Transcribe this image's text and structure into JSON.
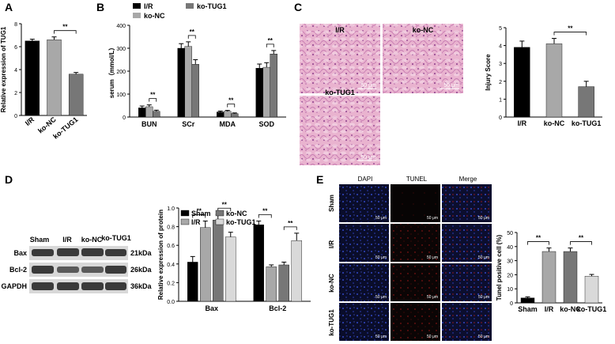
{
  "panels": {
    "A": "A",
    "B": "B",
    "C": "C",
    "D": "D",
    "E": "E"
  },
  "sig": "**",
  "colors": {
    "black": "#000000",
    "darkgray": "#8c8c8c",
    "gray": "#a8a8a8",
    "midgray": "#777777",
    "lightgray": "#d9d9d9",
    "he_pink": "#e7aac9",
    "he_purple": "#b06ca9",
    "dapi_blue": "#2a3aa8",
    "tunel_red": "#b31c1c"
  },
  "micro": {
    "he_labels": [
      "I/R",
      "ko-NC",
      "ko-TUG1"
    ],
    "scale": "50 μm",
    "fluor_cols": [
      "DAPI",
      "TUNEL",
      "Merge"
    ],
    "fluor_rows": [
      "Sham",
      "I/R",
      "ko-NC",
      "ko-TUG1"
    ]
  },
  "western": {
    "lanes": [
      "Sham",
      "I/R",
      "ko-NC",
      "ko-TUG1"
    ],
    "rows": [
      {
        "name": "Bax",
        "kda": "21kDa"
      },
      {
        "name": "Bcl-2",
        "kda": "26kDa"
      },
      {
        "name": "GAPDH",
        "kda": "36kDa"
      }
    ]
  },
  "chart_data": [
    {
      "panel": "A",
      "type": "bar",
      "categories": [
        "I/R",
        "ko-NC",
        "ko-TUG1"
      ],
      "values": [
        6.5,
        6.6,
        3.6
      ],
      "errors": [
        0.15,
        0.25,
        0.15
      ],
      "colors": [
        "#000000",
        "#a8a8a8",
        "#777777"
      ],
      "ylabel": "Relative expression of TUG1",
      "ylim": [
        0,
        8
      ],
      "yticks": [
        "0",
        "2",
        "4",
        "6",
        "8"
      ],
      "sig": [
        {
          "from": 1,
          "to": 2
        }
      ]
    },
    {
      "panel": "B",
      "type": "bar",
      "categories": [
        "BUN",
        "SCr",
        "MDA",
        "SOD"
      ],
      "series": [
        {
          "name": "I/R",
          "color": "#000000",
          "values": [
            40,
            300,
            22,
            213
          ],
          "errors": [
            8,
            20,
            4,
            18
          ]
        },
        {
          "name": "ko-NC",
          "color": "#a8a8a8",
          "values": [
            45,
            308,
            25,
            217
          ],
          "errors": [
            8,
            20,
            4,
            20
          ]
        },
        {
          "name": "ko-TUG1",
          "color": "#777777",
          "values": [
            25,
            230,
            15,
            275
          ],
          "errors": [
            5,
            20,
            3,
            15
          ]
        }
      ],
      "ylabel": "serum（mmol/L）",
      "ylim": [
        0,
        400
      ],
      "yticks": [
        "0",
        "100",
        "200",
        "300",
        "400"
      ],
      "sig": [
        {
          "group": 0,
          "from": 1,
          "to": 2
        },
        {
          "group": 1,
          "from": 1,
          "to": 2
        },
        {
          "group": 2,
          "from": 1,
          "to": 2
        },
        {
          "group": 3,
          "from": 1,
          "to": 2
        }
      ]
    },
    {
      "panel": "C",
      "type": "bar",
      "categories": [
        "I/R",
        "ko-NC",
        "ko-TUG1"
      ],
      "values": [
        3.9,
        4.1,
        1.7
      ],
      "errors": [
        0.35,
        0.3,
        0.3
      ],
      "colors": [
        "#000000",
        "#a8a8a8",
        "#777777"
      ],
      "ylabel": "Injury Score",
      "ylim": [
        0,
        5
      ],
      "yticks": [
        "0",
        "1",
        "2",
        "3",
        "4",
        "5"
      ],
      "sig": [
        {
          "from": 1,
          "to": 2
        }
      ]
    },
    {
      "panel": "D",
      "type": "bar",
      "categories": [
        "Bax",
        "Bcl-2"
      ],
      "series": [
        {
          "name": "Sham",
          "color": "#000000",
          "values": [
            0.42,
            0.82
          ],
          "errors": [
            0.06,
            0.04
          ]
        },
        {
          "name": "I/R",
          "color": "#a8a8a8",
          "values": [
            0.79,
            0.37
          ],
          "errors": [
            0.07,
            0.02
          ]
        },
        {
          "name": "ko-NC",
          "color": "#777777",
          "values": [
            0.87,
            0.39
          ],
          "errors": [
            0.06,
            0.03
          ]
        },
        {
          "name": "ko-TUG1",
          "color": "#d9d9d9",
          "values": [
            0.69,
            0.65
          ],
          "errors": [
            0.05,
            0.08
          ]
        }
      ],
      "ylabel": "Relative expression of protein",
      "ylim": [
        0,
        1.0
      ],
      "yticks": [
        "0.0",
        "0.2",
        "0.4",
        "0.6",
        "0.8",
        "1.0"
      ],
      "sig": [
        {
          "group": 0,
          "from": 0,
          "to": 1
        },
        {
          "group": 0,
          "from": 2,
          "to": 3
        },
        {
          "group": 1,
          "from": 0,
          "to": 1
        },
        {
          "group": 1,
          "from": 2,
          "to": 3
        }
      ]
    },
    {
      "panel": "E",
      "type": "bar",
      "categories": [
        "Sham",
        "I/R",
        "ko-NC",
        "ko-TUG1"
      ],
      "values": [
        3.5,
        36.5,
        36.5,
        19
      ],
      "errors": [
        0.8,
        2.5,
        2.5,
        1.2
      ],
      "colors": [
        "#000000",
        "#a8a8a8",
        "#777777",
        "#d9d9d9"
      ],
      "ylabel": "Tunel positive cell (%)",
      "ylim": [
        0,
        50
      ],
      "yticks": [
        "0",
        "10",
        "20",
        "30",
        "40",
        "50"
      ],
      "sig": [
        {
          "from": 0,
          "to": 1
        },
        {
          "from": 2,
          "to": 3
        }
      ]
    }
  ]
}
